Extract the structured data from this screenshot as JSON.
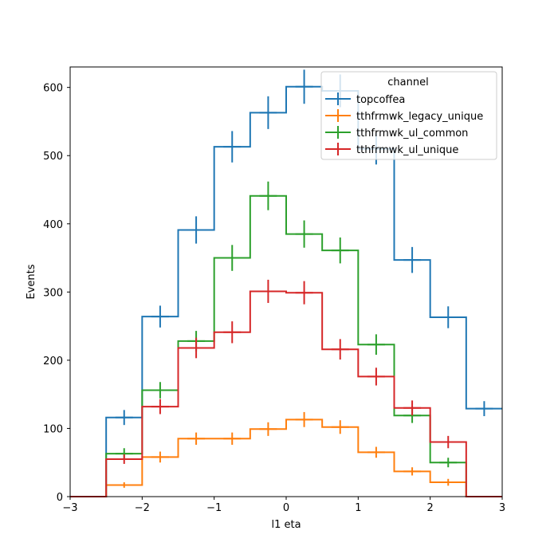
{
  "chart_data": {
    "type": "step-histogram",
    "xlabel": "l1 eta",
    "ylabel": "Events",
    "xlim": [
      -3,
      3
    ],
    "ylim": [
      0,
      630
    ],
    "x_ticks": [
      -3,
      -2,
      -1,
      0,
      1,
      2,
      3
    ],
    "y_ticks": [
      0,
      100,
      200,
      300,
      400,
      500,
      600
    ],
    "bin_edges": [
      -3,
      -2.5,
      -2,
      -1.5,
      -1,
      -0.5,
      0,
      0.5,
      1,
      1.5,
      2,
      2.5,
      3
    ],
    "legend": {
      "title": "channel",
      "placement": "top-right"
    },
    "series": [
      {
        "name": "topcoffea",
        "color": "#1f77b4",
        "values": [
          0,
          116,
          264,
          391,
          513,
          563,
          601,
          595,
          510,
          347,
          263,
          129
        ],
        "errors": [
          0,
          11,
          16,
          20,
          23,
          24,
          25,
          24,
          23,
          19,
          16,
          11
        ]
      },
      {
        "name": "tthfrmwk_legacy_unique",
        "color": "#ff7f0e",
        "values": [
          0,
          17,
          58,
          85,
          85,
          99,
          113,
          102,
          65,
          37,
          21,
          0
        ],
        "errors": [
          0,
          4,
          8,
          9,
          9,
          10,
          11,
          10,
          8,
          6,
          5,
          0
        ]
      },
      {
        "name": "tthfrmwk_ul_common",
        "color": "#2ca02c",
        "values": [
          0,
          63,
          156,
          228,
          350,
          441,
          385,
          361,
          223,
          119,
          50,
          0
        ],
        "errors": [
          0,
          8,
          12,
          15,
          19,
          21,
          20,
          19,
          15,
          11,
          7,
          0
        ]
      },
      {
        "name": "tthfrmwk_ul_unique",
        "color": "#d62728",
        "values": [
          0,
          55,
          132,
          218,
          241,
          301,
          299,
          216,
          176,
          130,
          80,
          0
        ],
        "errors": [
          0,
          7,
          11,
          15,
          16,
          17,
          17,
          15,
          13,
          11,
          9,
          0
        ]
      }
    ]
  }
}
